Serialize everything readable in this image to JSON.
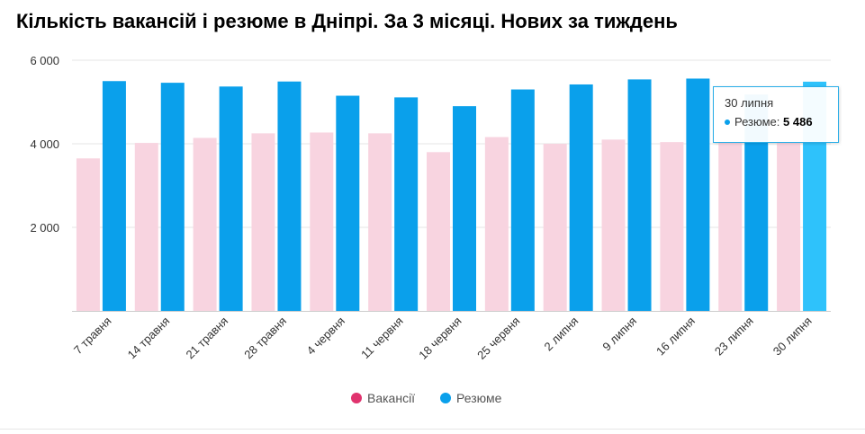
{
  "page": {
    "title": "Кількість вакансій і резюме в Дніпрі. За 3 місяці. Нових за тиждень"
  },
  "chart_data": {
    "type": "bar",
    "title": "Кількість вакансій і резюме в Дніпрі. За 3 місяці. Нових за тиждень",
    "categories": [
      "7 травня",
      "14 травня",
      "21 травня",
      "28 травня",
      "4 червня",
      "11 червня",
      "18 червня",
      "25 червня",
      "2 липня",
      "9 липня",
      "16 липня",
      "23 липня",
      "30 липня"
    ],
    "series": [
      {
        "name": "Вакансії",
        "color": "#f8d4e0",
        "legend_color": "#e0336e",
        "values": [
          3650,
          4020,
          4140,
          4250,
          4270,
          4250,
          3800,
          4160,
          4000,
          4100,
          4040,
          4050,
          4080
        ]
      },
      {
        "name": "Резюме",
        "color": "#0aa0eb",
        "legend_color": "#0aa0eb",
        "highlight_color": "#2ec2fb",
        "values": [
          5500,
          5460,
          5370,
          5490,
          5150,
          5110,
          4900,
          5300,
          5420,
          5540,
          5560,
          5180,
          5486
        ]
      }
    ],
    "ylim": [
      0,
      6000
    ],
    "yticks": [
      {
        "value": 2000,
        "label": "2 000"
      },
      {
        "value": 4000,
        "label": "4 000"
      },
      {
        "value": 6000,
        "label": "6 000"
      }
    ],
    "xlabel": "",
    "ylabel": "",
    "grid": true,
    "legend": "bottom-center",
    "highlighted_index": 12
  },
  "tooltip": {
    "date": "30 липня",
    "series_label": "Резюме:",
    "value_text": "5 486",
    "dot_color": "#0aa0eb"
  }
}
